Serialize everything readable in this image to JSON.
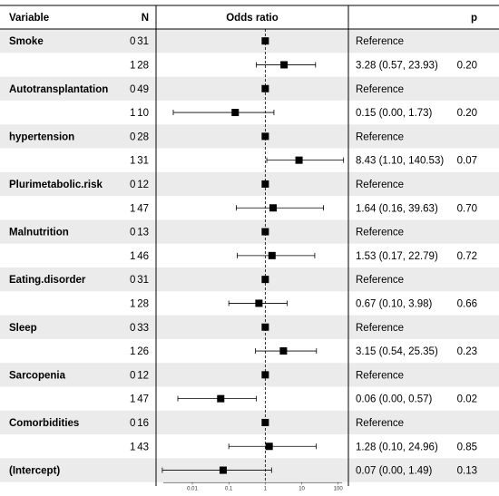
{
  "chart_data": {
    "type": "forest",
    "header": {
      "variable": "Variable",
      "n": "N",
      "or": "Odds ratio",
      "p": "p"
    },
    "x_axis": {
      "scale": "log",
      "ticks": [
        "0.01",
        "0.1",
        "1",
        "10",
        "100"
      ],
      "tick_values": [
        0.01,
        0.1,
        1,
        10,
        100
      ],
      "reference_line": 1
    },
    "reference_text": "Reference",
    "rows": [
      {
        "variable": "Smoke",
        "level": "0",
        "n": "31",
        "or": 1,
        "ref": true
      },
      {
        "variable": "",
        "level": "1",
        "n": "28",
        "or": 3.28,
        "lo": 0.57,
        "hi": 23.93,
        "ci_text": "3.28 (0.57, 23.93)",
        "p": "0.20"
      },
      {
        "variable": "Autotransplantation",
        "level": "0",
        "n": "49",
        "or": 1,
        "ref": true
      },
      {
        "variable": "",
        "level": "1",
        "n": "10",
        "or": 0.15,
        "lo": 0.003,
        "hi": 1.73,
        "ci_text": "0.15 (0.00, 1.73)",
        "p": "0.20"
      },
      {
        "variable": "hypertension",
        "level": "0",
        "n": "28",
        "or": 1,
        "ref": true
      },
      {
        "variable": "",
        "level": "1",
        "n": "31",
        "or": 8.43,
        "lo": 1.1,
        "hi": 140.53,
        "ci_text": "8.43 (1.10, 140.53)",
        "p": "0.07"
      },
      {
        "variable": "Plurimetabolic.risk",
        "level": "0",
        "n": "12",
        "or": 1,
        "ref": true
      },
      {
        "variable": "",
        "level": "1",
        "n": "47",
        "or": 1.64,
        "lo": 0.16,
        "hi": 39.63,
        "ci_text": "1.64 (0.16, 39.63)",
        "p": "0.70"
      },
      {
        "variable": "Malnutrition",
        "level": "0",
        "n": "13",
        "or": 1,
        "ref": true
      },
      {
        "variable": "",
        "level": "1",
        "n": "46",
        "or": 1.53,
        "lo": 0.17,
        "hi": 22.79,
        "ci_text": "1.53 (0.17, 22.79)",
        "p": "0.72"
      },
      {
        "variable": "Eating.disorder",
        "level": "0",
        "n": "31",
        "or": 1,
        "ref": true
      },
      {
        "variable": "",
        "level": "1",
        "n": "28",
        "or": 0.67,
        "lo": 0.1,
        "hi": 3.98,
        "ci_text": "0.67 (0.10, 3.98)",
        "p": "0.66"
      },
      {
        "variable": "Sleep",
        "level": "0",
        "n": "33",
        "or": 1,
        "ref": true
      },
      {
        "variable": "",
        "level": "1",
        "n": "26",
        "or": 3.15,
        "lo": 0.54,
        "hi": 25.35,
        "ci_text": "3.15 (0.54, 25.35)",
        "p": "0.23"
      },
      {
        "variable": "Sarcopenia",
        "level": "0",
        "n": "12",
        "or": 1,
        "ref": true
      },
      {
        "variable": "",
        "level": "1",
        "n": "47",
        "or": 0.06,
        "lo": 0.004,
        "hi": 0.57,
        "ci_text": "0.06 (0.00, 0.57)",
        "p": "0.02"
      },
      {
        "variable": "Comorbidities",
        "level": "0",
        "n": "16",
        "or": 1,
        "ref": true
      },
      {
        "variable": "",
        "level": "1",
        "n": "43",
        "or": 1.28,
        "lo": 0.1,
        "hi": 24.96,
        "ci_text": "1.28 (0.10, 24.96)",
        "p": "0.85"
      },
      {
        "variable": "(Intercept)",
        "level": "",
        "n": "",
        "or": 0.07,
        "lo": 0.0015,
        "hi": 1.49,
        "ci_text": "0.07 (0.00, 1.49)",
        "p": "0.13"
      }
    ],
    "colors": {
      "band": "#ebebeb",
      "marker": "#000000",
      "line": "#000000"
    }
  }
}
